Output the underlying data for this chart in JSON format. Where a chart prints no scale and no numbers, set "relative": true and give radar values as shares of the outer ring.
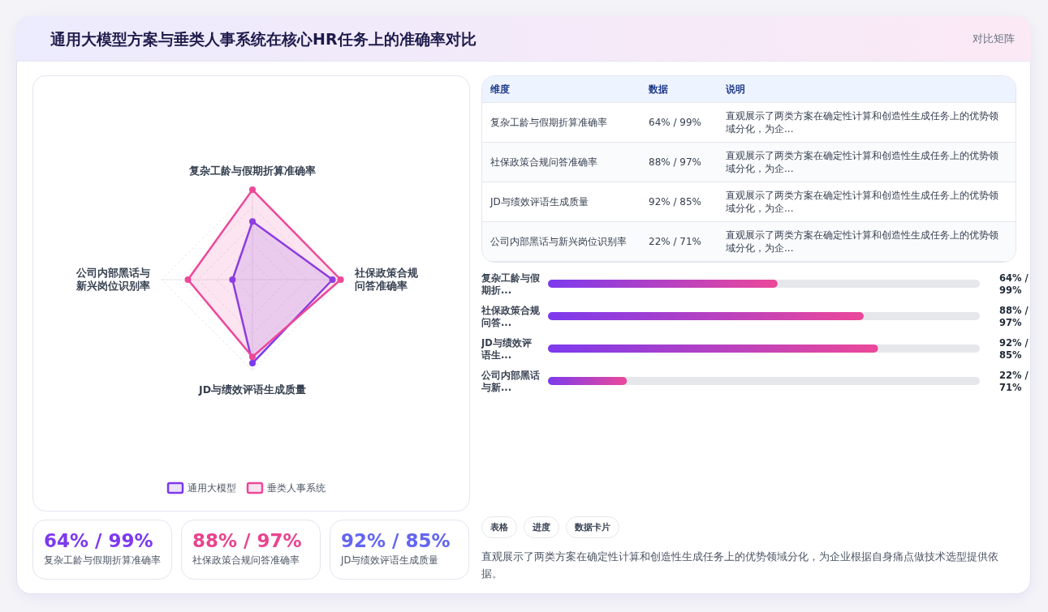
{
  "chart_data": [
    {
      "type": "other",
      "title": "通用大模型方案与垂类人事系统在核心HR任务上的准确率对比",
      "subtitle": "对比矩阵"
    },
    {
      "type": "radar",
      "categories": [
        "复杂工龄与假期折算准确率",
        "社保政策合规问答准确率",
        "JD与绩效评语生成质量",
        "公司内部黑话与新兴岗位识别率"
      ],
      "relative": true,
      "grid": true,
      "marker": "circle",
      "legend": "bottom",
      "series": [
        {
          "name": "通用大模型",
          "color": "#7c3aed",
          "values": [
            0.64,
            0.88,
            0.92,
            0.22
          ]
        },
        {
          "name": "垂类人事系统",
          "color": "#ec4899",
          "values": [
            0.99,
            0.97,
            0.85,
            0.71
          ]
        }
      ]
    },
    {
      "type": "other",
      "categories": [
        "复杂工龄与假期折算准确率",
        "社保政策合规问答准确率",
        "JD与绩效评语生成质量",
        "公司内部黑话与新兴岗位识别率"
      ],
      "value_labels": [
        "64% / 99%",
        "88% / 97%",
        "92% / 85%",
        "22% / 71%"
      ],
      "annotations": [
        "维度",
        "数据",
        "说明",
        "直观展示了两类方案在确定性计算和创造性生成任务上的优势领域分化，为企...",
        "直观展示了两类方案在确定性计算和创造性生成任务上的优势领域分化，为企...",
        "直观展示了两类方案在确定性计算和创造性生成任务上的优势领域分化，为企...",
        "直观展示了两类方案在确定性计算和创造性生成任务上的优势领域分化，为企..."
      ]
    },
    {
      "type": "bar",
      "orientation": "horizontal",
      "color": "#7c3aed",
      "categories": [
        "复杂工龄与假期折...",
        "社保政策合规问答...",
        "JD与绩效评语生...",
        "公司内部黑话与新..."
      ],
      "values": [
        64,
        88,
        92,
        22
      ],
      "value_labels": [
        "64% / 99%",
        "88% / 97%",
        "92% / 85%",
        "22% / 71%"
      ]
    },
    {
      "type": "other",
      "value_labels": [
        "64% / 99%",
        "88% / 97%",
        "92% / 85%"
      ],
      "categories": [
        "复杂工龄与假期折算准确率",
        "社保政策合规问答准确率",
        "JD与绩效评语生成质量"
      ]
    },
    {
      "type": "other",
      "annotations": [
        "表格",
        "进度",
        "数据卡片",
        "直观展示了两类方案在确定性计算和创造性生成任务上的优势领域分化，为企业根据自身痛点做技术选型提供依据。"
      ]
    }
  ]
}
